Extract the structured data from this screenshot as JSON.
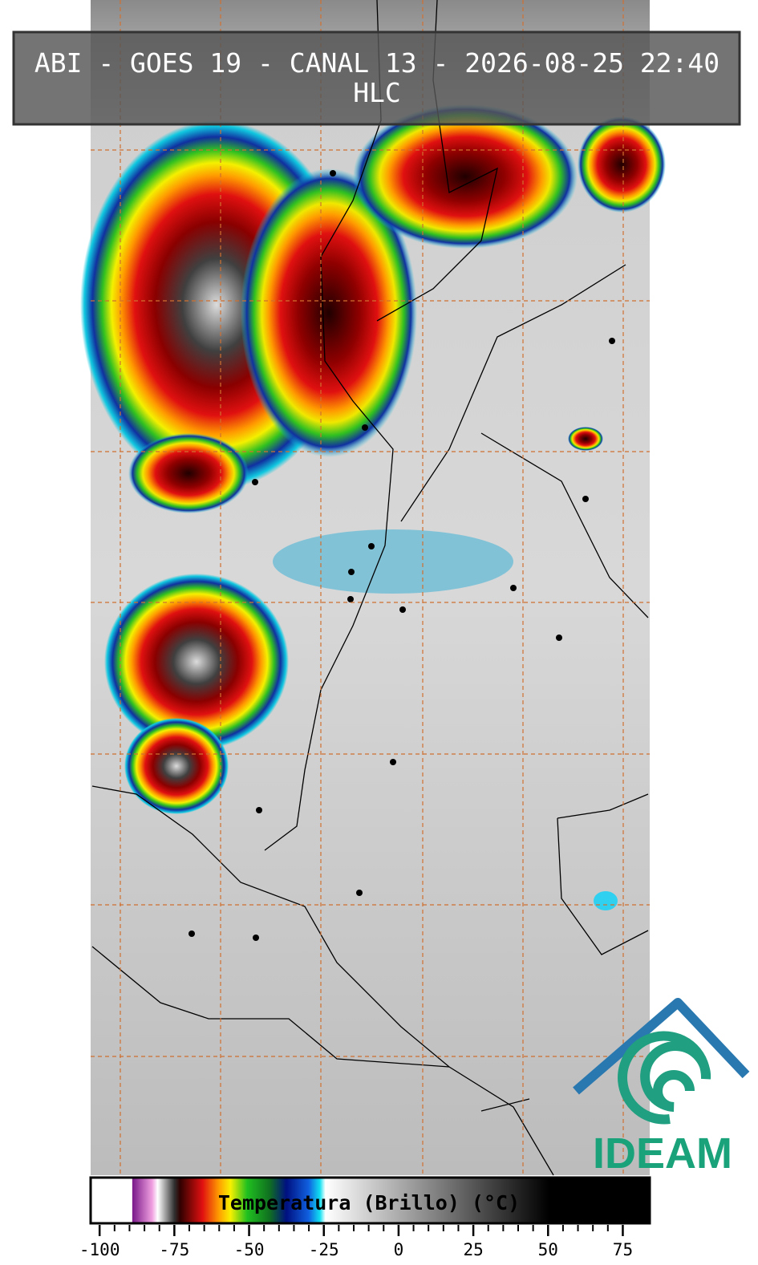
{
  "header": {
    "title": "ABI - GOES 19 - CANAL 13 - 2026-08-25 22:40",
    "subtitle": "HLC"
  },
  "logo": {
    "text": "IDEAM"
  },
  "colorbar": {
    "label": "Temperatura (Brillo) (°C)",
    "lim": [
      -103,
      84
    ],
    "ticks": [
      -100,
      -75,
      -50,
      -25,
      0,
      25,
      50,
      75
    ]
  }
}
